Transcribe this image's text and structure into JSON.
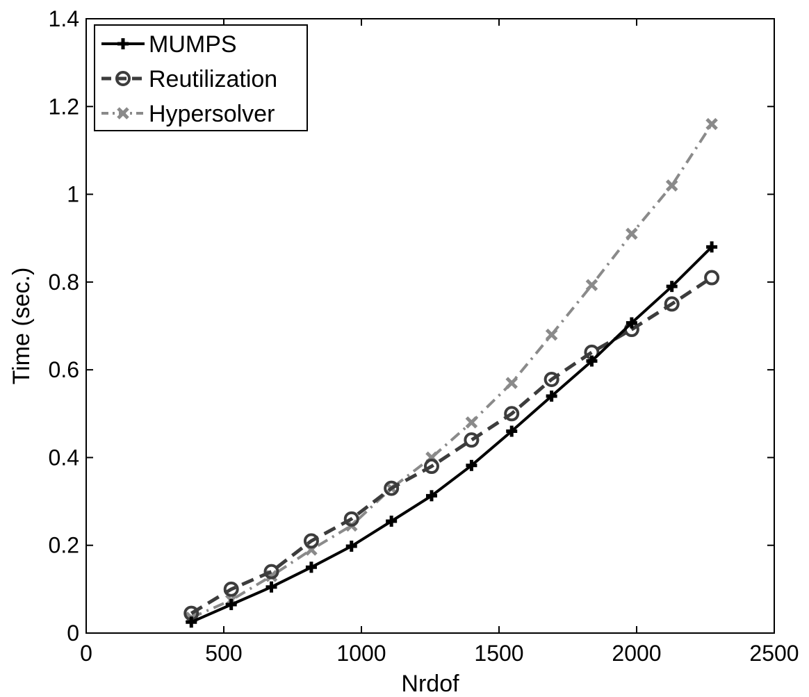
{
  "chart_data": {
    "type": "line",
    "title": "",
    "xlabel": "Nrdof",
    "ylabel": "Time (sec.)",
    "xlim": [
      0,
      2500
    ],
    "ylim": [
      0,
      1.4
    ],
    "xticks": [
      0,
      500,
      1000,
      1500,
      2000,
      2500
    ],
    "xtick_labels": [
      "0",
      "500",
      "1000",
      "1500",
      "2000",
      "2500"
    ],
    "yticks": [
      0,
      0.2,
      0.4,
      0.6,
      0.8,
      1.0,
      1.2,
      1.4
    ],
    "ytick_labels": [
      "0",
      "0.2",
      "0.4",
      "0.6",
      "0.8",
      "1",
      "1.2",
      "1.4"
    ],
    "grid": false,
    "legend_position": "top-left",
    "x": [
      382,
      527,
      673,
      818,
      964,
      1109,
      1255,
      1400,
      1546,
      1691,
      1837,
      1982,
      2128,
      2273
    ],
    "series": [
      {
        "name": "MUMPS",
        "style": "solid",
        "marker": "plus",
        "color": "#000000",
        "values": [
          0.025,
          0.065,
          0.105,
          0.15,
          0.198,
          0.255,
          0.313,
          0.382,
          0.46,
          0.54,
          0.62,
          0.707,
          0.79,
          0.88
        ]
      },
      {
        "name": "Reutilization",
        "style": "dashed",
        "marker": "circle",
        "color": "#3c3c3c",
        "values": [
          0.045,
          0.1,
          0.14,
          0.21,
          0.26,
          0.33,
          0.38,
          0.44,
          0.5,
          0.578,
          0.64,
          0.692,
          0.75,
          0.81
        ]
      },
      {
        "name": "Hypersolver",
        "style": "dashdot",
        "marker": "x",
        "color": "#8a8a8a",
        "values": [
          0.035,
          0.075,
          0.13,
          0.19,
          0.245,
          0.33,
          0.4,
          0.48,
          0.57,
          0.68,
          0.793,
          0.91,
          1.02,
          1.16
        ]
      }
    ]
  }
}
